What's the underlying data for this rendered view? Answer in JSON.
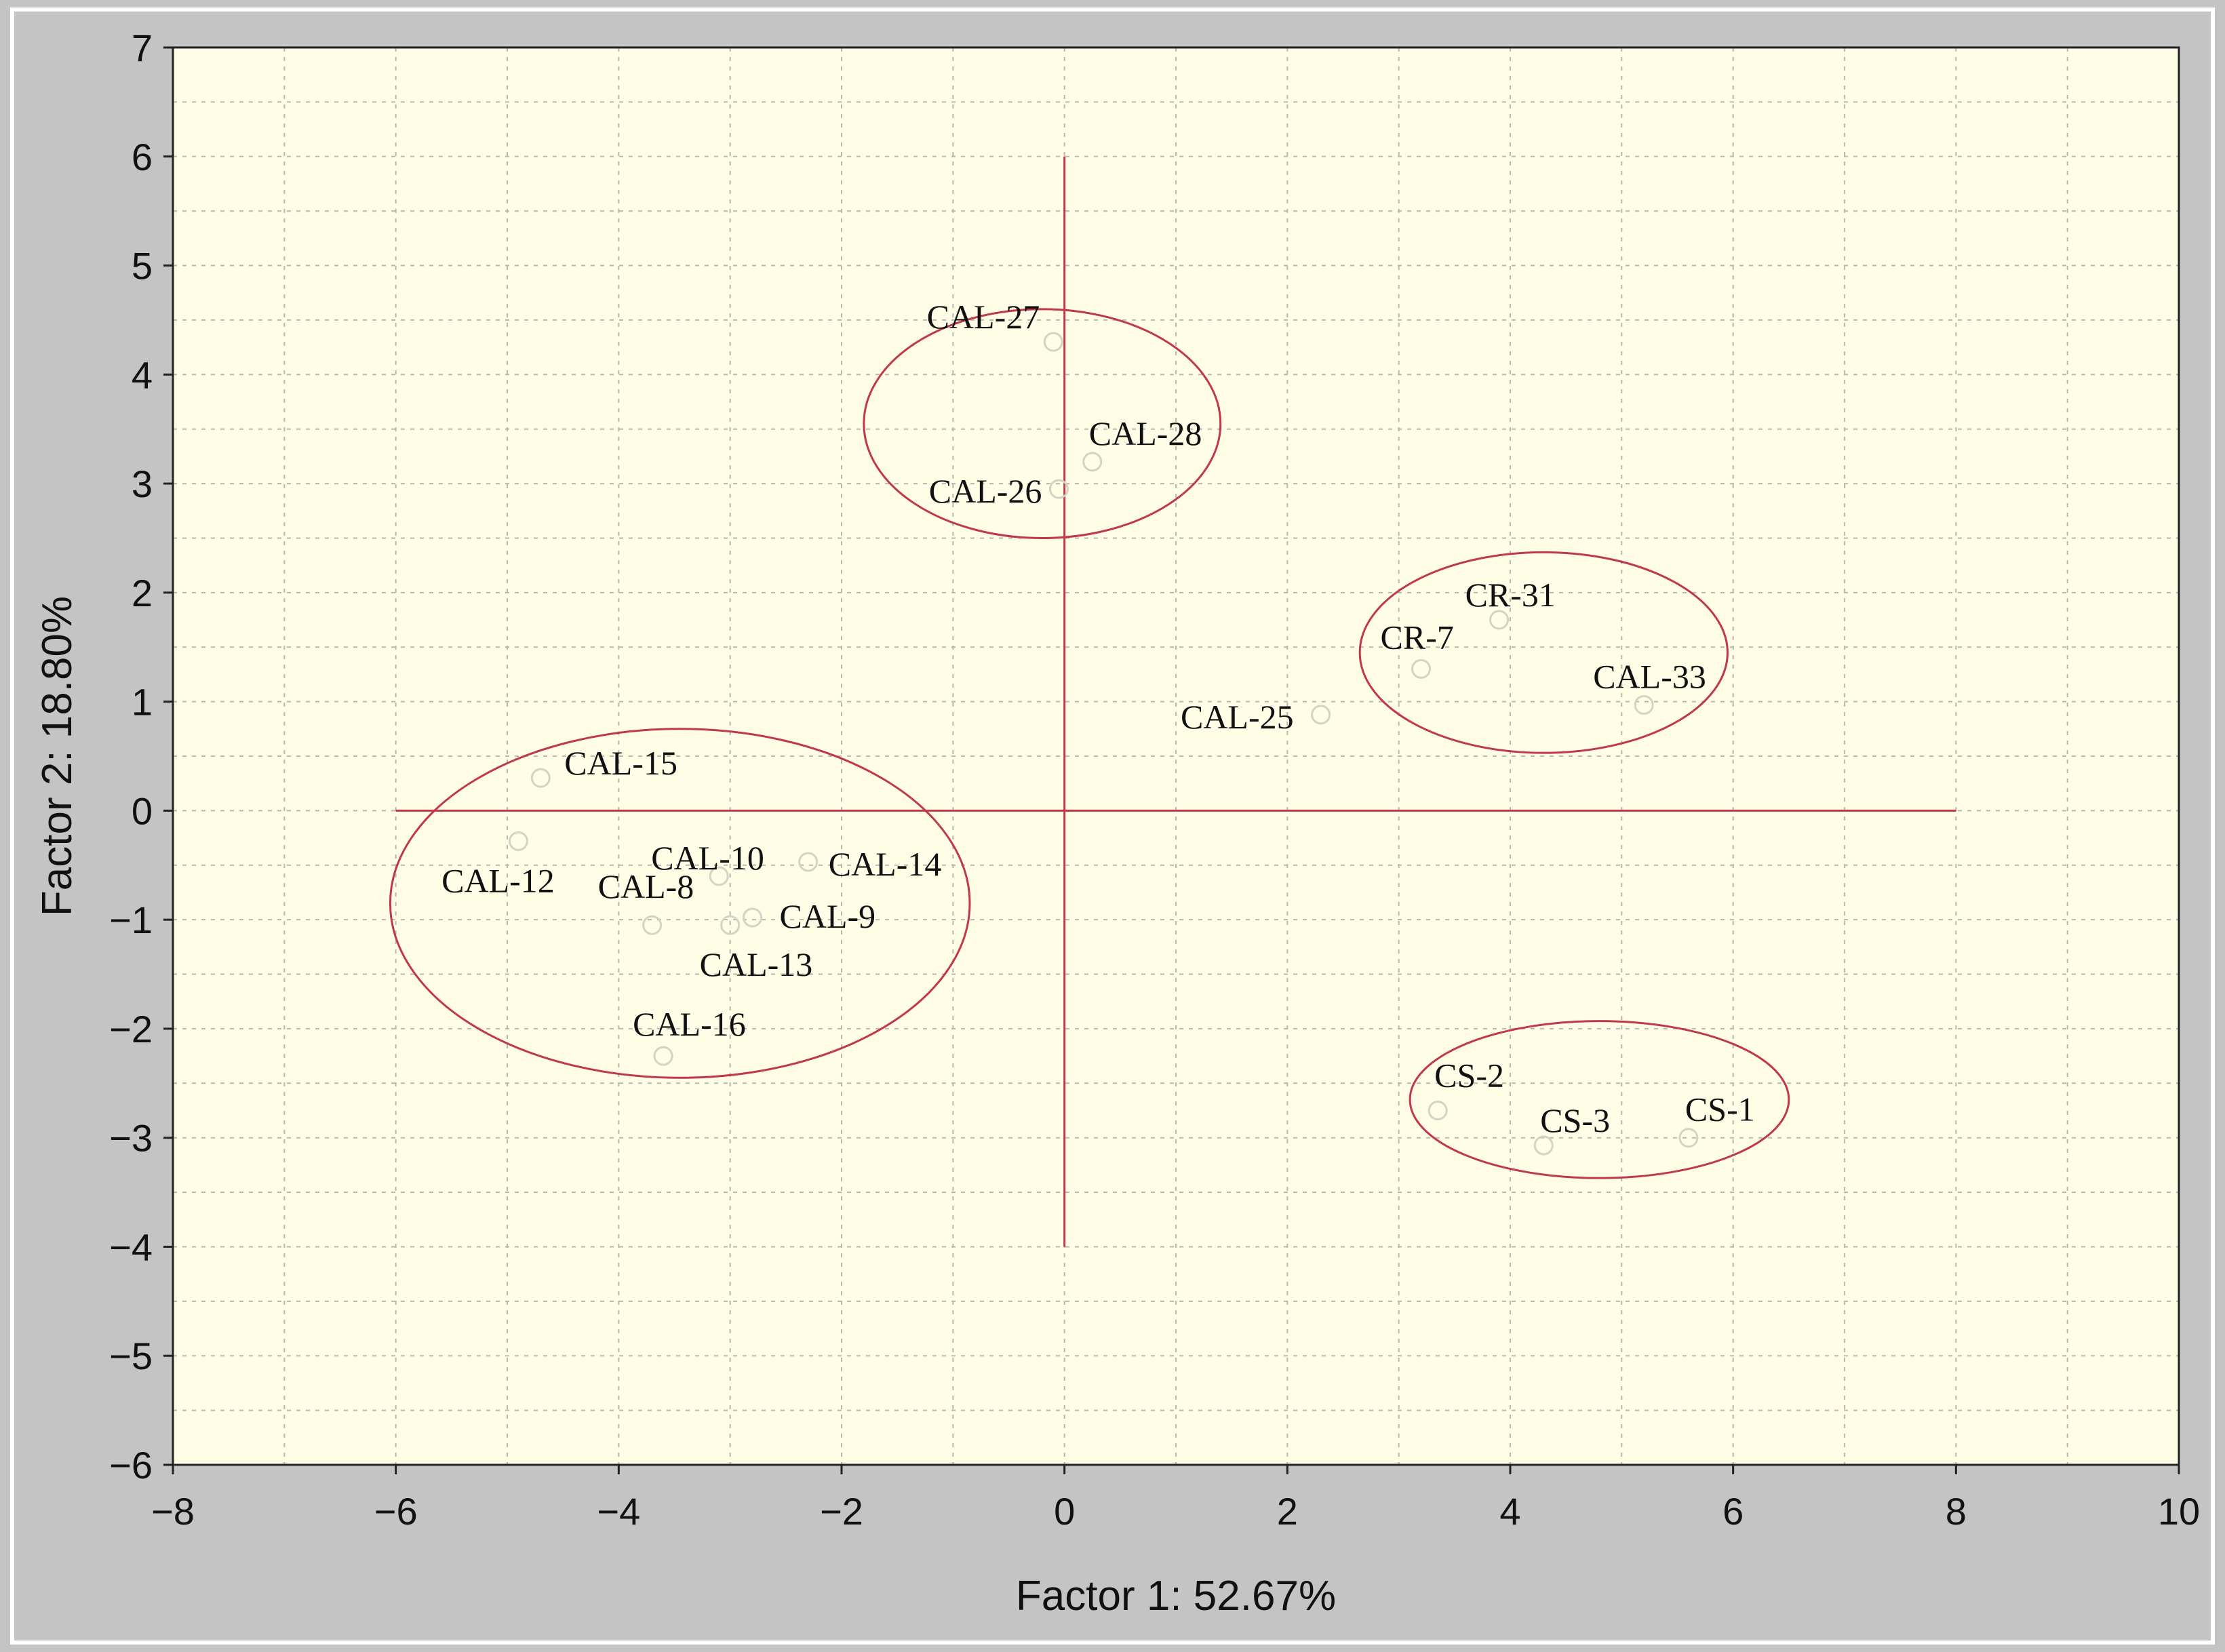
{
  "colors": {
    "frame_background": "#c4c4c4",
    "plot_background": "#fffde6",
    "grid": "#b8b8b0",
    "reference_lines": "#c0394b",
    "cluster_ellipses": "#c0394b",
    "point_marker": "#d4d4c4"
  },
  "chart_data": {
    "type": "scatter",
    "title": "",
    "xlabel": "Factor 1: 52.67%",
    "ylabel": "Factor 2: 18.80%",
    "xlim": [
      -8,
      10
    ],
    "ylim": [
      -6,
      7
    ],
    "xticks": [
      -8,
      -6,
      -4,
      -2,
      0,
      2,
      4,
      6,
      8,
      10
    ],
    "yticks": [
      -6,
      -5,
      -4,
      -3,
      -2,
      -1,
      0,
      1,
      2,
      3,
      4,
      5,
      6,
      7
    ],
    "grid": true,
    "legend": "none",
    "reference_lines": {
      "horizontal": {
        "y": 0,
        "x_from": -6,
        "x_to": 8
      },
      "vertical": {
        "x": 0,
        "y_from": -4,
        "y_to": 6
      }
    },
    "points": [
      {
        "label": "CAL-27",
        "x": -0.1,
        "y": 4.3
      },
      {
        "label": "CAL-28",
        "x": 0.25,
        "y": 3.2
      },
      {
        "label": "CAL-26",
        "x": -0.05,
        "y": 2.95
      },
      {
        "label": "CR-31",
        "x": 3.9,
        "y": 1.75
      },
      {
        "label": "CR-7",
        "x": 3.2,
        "y": 1.3
      },
      {
        "label": "CAL-33",
        "x": 5.2,
        "y": 0.97
      },
      {
        "label": "CAL-25",
        "x": 2.3,
        "y": 0.88
      },
      {
        "label": "CAL-15",
        "x": -4.7,
        "y": 0.3
      },
      {
        "label": "CAL-12",
        "x": -4.9,
        "y": -0.28
      },
      {
        "label": "CAL-10",
        "x": -3.1,
        "y": -0.6
      },
      {
        "label": "CAL-14",
        "x": -2.3,
        "y": -0.47
      },
      {
        "label": "CAL-8",
        "x": -3.7,
        "y": -1.05
      },
      {
        "label": "CAL-9",
        "x": -2.8,
        "y": -0.98
      },
      {
        "label": "CAL-13",
        "x": -3.0,
        "y": -1.05
      },
      {
        "label": "CAL-16",
        "x": -3.6,
        "y": -2.25
      },
      {
        "label": "CS-2",
        "x": 3.35,
        "y": -2.75
      },
      {
        "label": "CS-3",
        "x": 4.3,
        "y": -3.07
      },
      {
        "label": "CS-1",
        "x": 5.6,
        "y": -3.0
      }
    ],
    "clusters": [
      {
        "cx": -0.2,
        "cy": 3.55,
        "rx": 1.6,
        "ry": 1.05
      },
      {
        "cx": 4.3,
        "cy": 1.45,
        "rx": 1.65,
        "ry": 0.92
      },
      {
        "cx": -3.45,
        "cy": -0.85,
        "rx": 2.6,
        "ry": 1.6
      },
      {
        "cx": 4.8,
        "cy": -2.65,
        "rx": 1.7,
        "ry": 0.72
      }
    ]
  }
}
